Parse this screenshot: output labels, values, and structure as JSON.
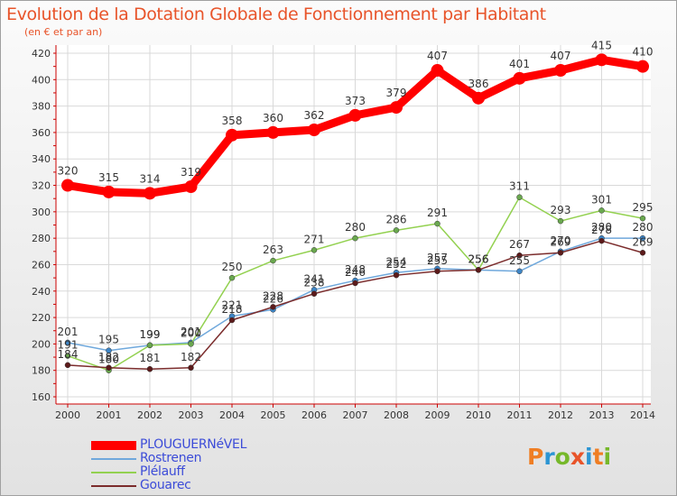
{
  "title": "Evolution de la Dotation Globale de Fonctionnement par Habitant",
  "subtitle": "(en € et par an)",
  "logo": {
    "text": "Proxiti",
    "colors": [
      "#ef7e24",
      "#2c95d3",
      "#76b82a",
      "#e8542a",
      "#2c95d3",
      "#ef7e24",
      "#76b82a"
    ]
  },
  "chart_data": {
    "type": "line",
    "title": "Evolution de la Dotation Globale de Fonctionnement par Habitant",
    "subtitle": "(en € et par an)",
    "x": [
      "2000",
      "2001",
      "2002",
      "2003",
      "2004",
      "2005",
      "2006",
      "2007",
      "2008",
      "2009",
      "2010",
      "2011",
      "2012",
      "2013",
      "2014"
    ],
    "yticks": [
      160,
      180,
      200,
      220,
      240,
      260,
      280,
      300,
      320,
      340,
      360,
      380,
      400,
      420
    ],
    "ylim": [
      160,
      420
    ],
    "grid": true,
    "legend_position": "bottom-left",
    "series": [
      {
        "name": "PLOUGUERNéVEL",
        "color": "#ff0000",
        "marker": "#ff0000",
        "bold": true,
        "values": [
          320,
          315,
          314,
          319,
          358,
          360,
          362,
          373,
          379,
          407,
          386,
          401,
          407,
          415,
          410
        ]
      },
      {
        "name": "Rostrenen",
        "color": "#6fa8dc",
        "marker": "#3d85c6",
        "bold": false,
        "values": [
          201,
          195,
          199,
          201,
          221,
          226,
          241,
          248,
          254,
          257,
          256,
          255,
          270,
          280,
          280
        ]
      },
      {
        "name": "Plélauff",
        "color": "#93d150",
        "marker": "#6aa84f",
        "bold": false,
        "values": [
          191,
          180,
          199,
          200,
          250,
          263,
          271,
          280,
          286,
          291,
          256,
          311,
          293,
          301,
          295
        ]
      },
      {
        "name": "Gouarec",
        "color": "#7b2c2c",
        "marker": "#5c1a1a",
        "bold": false,
        "values": [
          184,
          182,
          181,
          182,
          218,
          228,
          238,
          246,
          252,
          255,
          256,
          267,
          269,
          278,
          269
        ]
      }
    ]
  }
}
